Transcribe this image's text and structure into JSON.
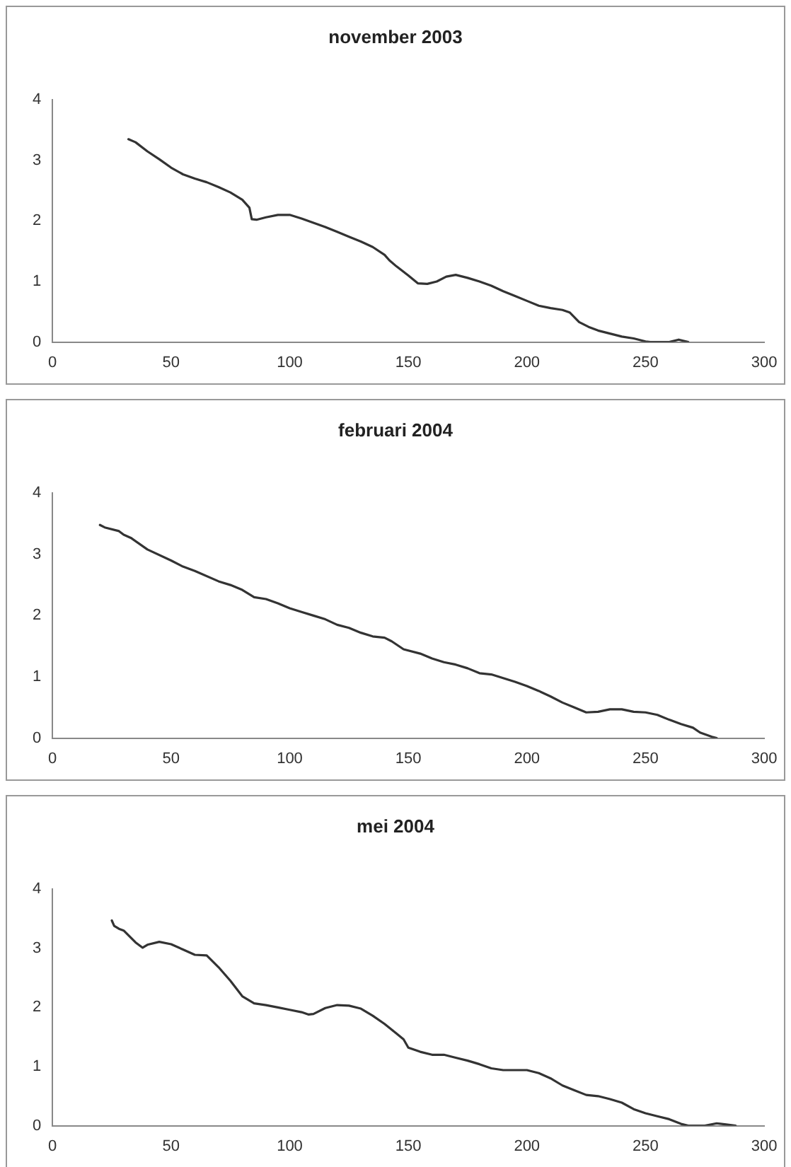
{
  "chart_data": [
    {
      "type": "line",
      "title": "november 2003",
      "color": "#333333",
      "marker": "none",
      "line_style": "solid",
      "grid": false,
      "legend": false,
      "xlim": [
        0,
        300
      ],
      "xticks": [
        0,
        50,
        100,
        150,
        200,
        250,
        300
      ],
      "ylim": [
        0,
        4
      ],
      "yticks": [
        0,
        1,
        2,
        3,
        4
      ],
      "x": [
        32,
        35,
        40,
        45,
        50,
        55,
        60,
        65,
        70,
        75,
        80,
        83,
        84,
        86,
        90,
        95,
        100,
        105,
        110,
        115,
        120,
        125,
        130,
        135,
        140,
        142,
        145,
        150,
        154,
        158,
        162,
        166,
        170,
        175,
        180,
        185,
        190,
        195,
        200,
        205,
        210,
        215,
        218,
        222,
        226,
        230,
        235,
        240,
        245,
        250,
        252,
        260,
        264,
        268
      ],
      "values": [
        3.35,
        3.3,
        3.15,
        3.02,
        2.88,
        2.77,
        2.7,
        2.64,
        2.56,
        2.47,
        2.35,
        2.22,
        2.03,
        2.02,
        2.06,
        2.1,
        2.1,
        2.04,
        1.97,
        1.9,
        1.82,
        1.74,
        1.66,
        1.57,
        1.44,
        1.35,
        1.25,
        1.1,
        0.97,
        0.96,
        1.0,
        1.08,
        1.11,
        1.06,
        1.0,
        0.93,
        0.84,
        0.76,
        0.68,
        0.6,
        0.56,
        0.53,
        0.49,
        0.33,
        0.25,
        0.19,
        0.14,
        0.09,
        0.06,
        0.01,
        0,
        0,
        0.04,
        0
      ]
    },
    {
      "type": "line",
      "title": "februari 2004",
      "color": "#333333",
      "marker": "none",
      "line_style": "solid",
      "grid": false,
      "legend": false,
      "xlim": [
        0,
        300
      ],
      "xticks": [
        0,
        50,
        100,
        150,
        200,
        250,
        300
      ],
      "ylim": [
        0,
        4
      ],
      "yticks": [
        0,
        1,
        2,
        3,
        4
      ],
      "x": [
        20,
        22,
        28,
        30,
        33,
        40,
        50,
        55,
        60,
        70,
        75,
        80,
        85,
        90,
        95,
        100,
        105,
        110,
        115,
        120,
        125,
        130,
        135,
        140,
        143,
        148,
        155,
        160,
        165,
        170,
        175,
        180,
        185,
        190,
        195,
        200,
        205,
        210,
        215,
        220,
        225,
        230,
        235,
        240,
        245,
        250,
        255,
        260,
        265,
        270,
        273,
        278,
        280
      ],
      "values": [
        3.48,
        3.44,
        3.38,
        3.32,
        3.27,
        3.08,
        2.9,
        2.8,
        2.73,
        2.56,
        2.5,
        2.42,
        2.3,
        2.27,
        2.2,
        2.12,
        2.06,
        2.0,
        1.94,
        1.85,
        1.8,
        1.72,
        1.66,
        1.64,
        1.58,
        1.45,
        1.38,
        1.3,
        1.24,
        1.2,
        1.14,
        1.06,
        1.04,
        0.98,
        0.92,
        0.85,
        0.77,
        0.68,
        0.58,
        0.5,
        0.42,
        0.43,
        0.47,
        0.47,
        0.43,
        0.42,
        0.38,
        0.3,
        0.23,
        0.17,
        0.09,
        0.02,
        0
      ]
    },
    {
      "type": "line",
      "title": "mei 2004",
      "color": "#333333",
      "marker": "none",
      "line_style": "solid",
      "grid": false,
      "legend": false,
      "xlim": [
        0,
        300
      ],
      "xticks": [
        0,
        50,
        100,
        150,
        200,
        250,
        300
      ],
      "ylim": [
        0,
        4
      ],
      "yticks": [
        0,
        1,
        2,
        3,
        4
      ],
      "x": [
        25,
        26,
        28,
        30,
        35,
        38,
        40,
        45,
        50,
        55,
        60,
        65,
        70,
        75,
        80,
        85,
        90,
        95,
        100,
        105,
        108,
        110,
        115,
        120,
        125,
        130,
        135,
        140,
        145,
        148,
        150,
        155,
        160,
        165,
        170,
        175,
        180,
        185,
        190,
        195,
        200,
        205,
        210,
        215,
        220,
        225,
        230,
        235,
        240,
        245,
        250,
        255,
        260,
        265,
        268,
        275,
        280,
        284,
        288
      ],
      "values": [
        3.47,
        3.38,
        3.33,
        3.3,
        3.1,
        3.01,
        3.06,
        3.11,
        3.07,
        2.98,
        2.89,
        2.88,
        2.68,
        2.45,
        2.19,
        2.07,
        2.04,
        2.0,
        1.96,
        1.92,
        1.88,
        1.89,
        1.99,
        2.04,
        2.03,
        1.98,
        1.86,
        1.72,
        1.56,
        1.46,
        1.32,
        1.25,
        1.2,
        1.2,
        1.15,
        1.1,
        1.04,
        0.97,
        0.94,
        0.94,
        0.94,
        0.89,
        0.8,
        0.68,
        0.6,
        0.52,
        0.5,
        0.45,
        0.39,
        0.28,
        0.21,
        0.16,
        0.11,
        0.03,
        0,
        0,
        0.04,
        0.02,
        0
      ]
    }
  ]
}
